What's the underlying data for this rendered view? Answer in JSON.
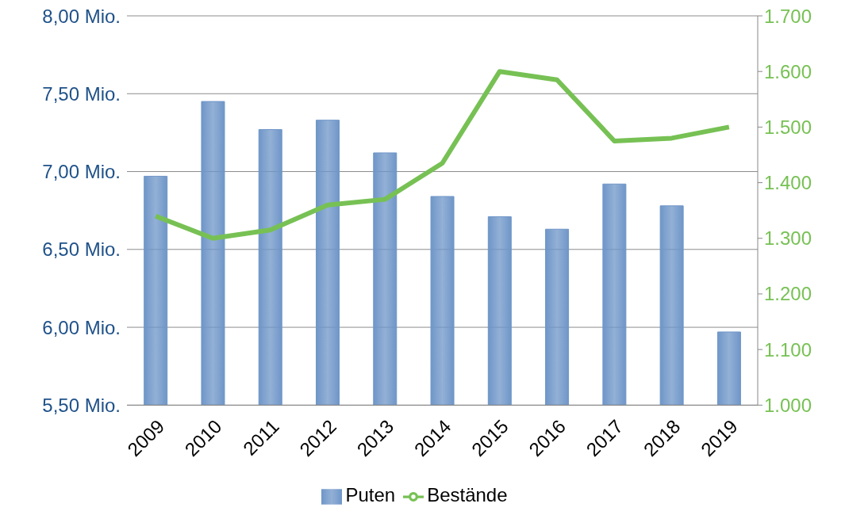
{
  "chart_data": {
    "type": "bar",
    "categories": [
      "2009",
      "2010",
      "2011",
      "2012",
      "2013",
      "2014",
      "2015",
      "2016",
      "2017",
      "2018",
      "2019"
    ],
    "series": [
      {
        "name": "Puten",
        "color": "#6f96c8",
        "values": [
          6.97,
          7.45,
          7.27,
          7.33,
          7.12,
          6.84,
          6.71,
          6.63,
          6.92,
          6.78,
          5.97
        ]
      },
      {
        "name": "Bestände",
        "type": "line",
        "axis": "y2",
        "color": "#77c154",
        "values": [
          1340,
          1300,
          1315,
          1360,
          1370,
          1435,
          1600,
          1585,
          1475,
          1480,
          1500
        ]
      }
    ],
    "ylim": [
      5.5,
      8
    ],
    "yticks": [
      {
        "value": 5.5,
        "label": "5,50 Mio."
      },
      {
        "value": 6,
        "label": "6,00 Mio."
      },
      {
        "value": 6.5,
        "label": "6,50 Mio."
      },
      {
        "value": 7,
        "label": "7,00 Mio."
      },
      {
        "value": 7.5,
        "label": "7,50 Mio."
      },
      {
        "value": 8,
        "label": "8,00 Mio."
      }
    ],
    "y2lim": [
      1000,
      1700
    ],
    "y2ticks": [
      {
        "value": 1000,
        "label": "1.000"
      },
      {
        "value": 1100,
        "label": "1.100"
      },
      {
        "value": 1200,
        "label": "1.200"
      },
      {
        "value": 1300,
        "label": "1.300"
      },
      {
        "value": 1400,
        "label": "1.400"
      },
      {
        "value": 1500,
        "label": "1.500"
      },
      {
        "value": 1600,
        "label": "1.600"
      },
      {
        "value": 1700,
        "label": "1.700"
      }
    ],
    "grid": "y",
    "legend": "bottom",
    "marker": "none"
  }
}
